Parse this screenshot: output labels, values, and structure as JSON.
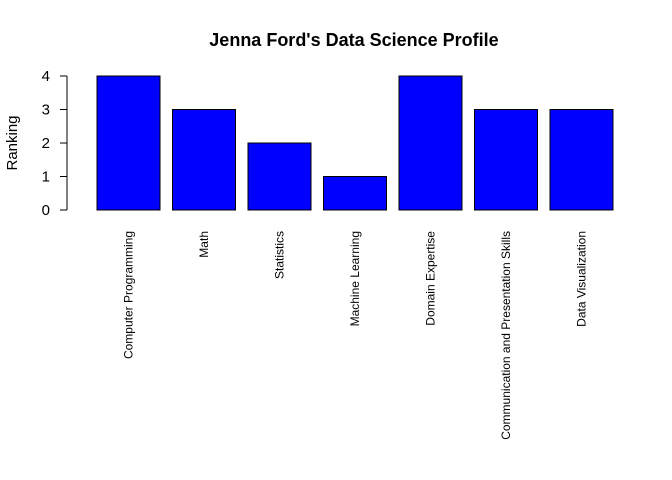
{
  "chart_data": {
    "type": "bar",
    "title": "Jenna Ford's Data Science Profile",
    "xlabel": "",
    "ylabel": "Ranking",
    "categories": [
      "Computer Programming",
      "Math",
      "Statistics",
      "Machine Learning",
      "Domain Expertise",
      "Communication and Presentation Skills",
      "Data Visualization"
    ],
    "values": [
      4,
      3,
      2,
      1,
      4,
      3,
      3
    ],
    "ylim": [
      0,
      4
    ],
    "yticks": [
      0,
      1,
      2,
      3,
      4
    ],
    "grid": false,
    "legend": "none",
    "colors": {
      "bar_fill": "#0000FF",
      "bar_stroke": "#000000",
      "axis": "#000000"
    }
  }
}
